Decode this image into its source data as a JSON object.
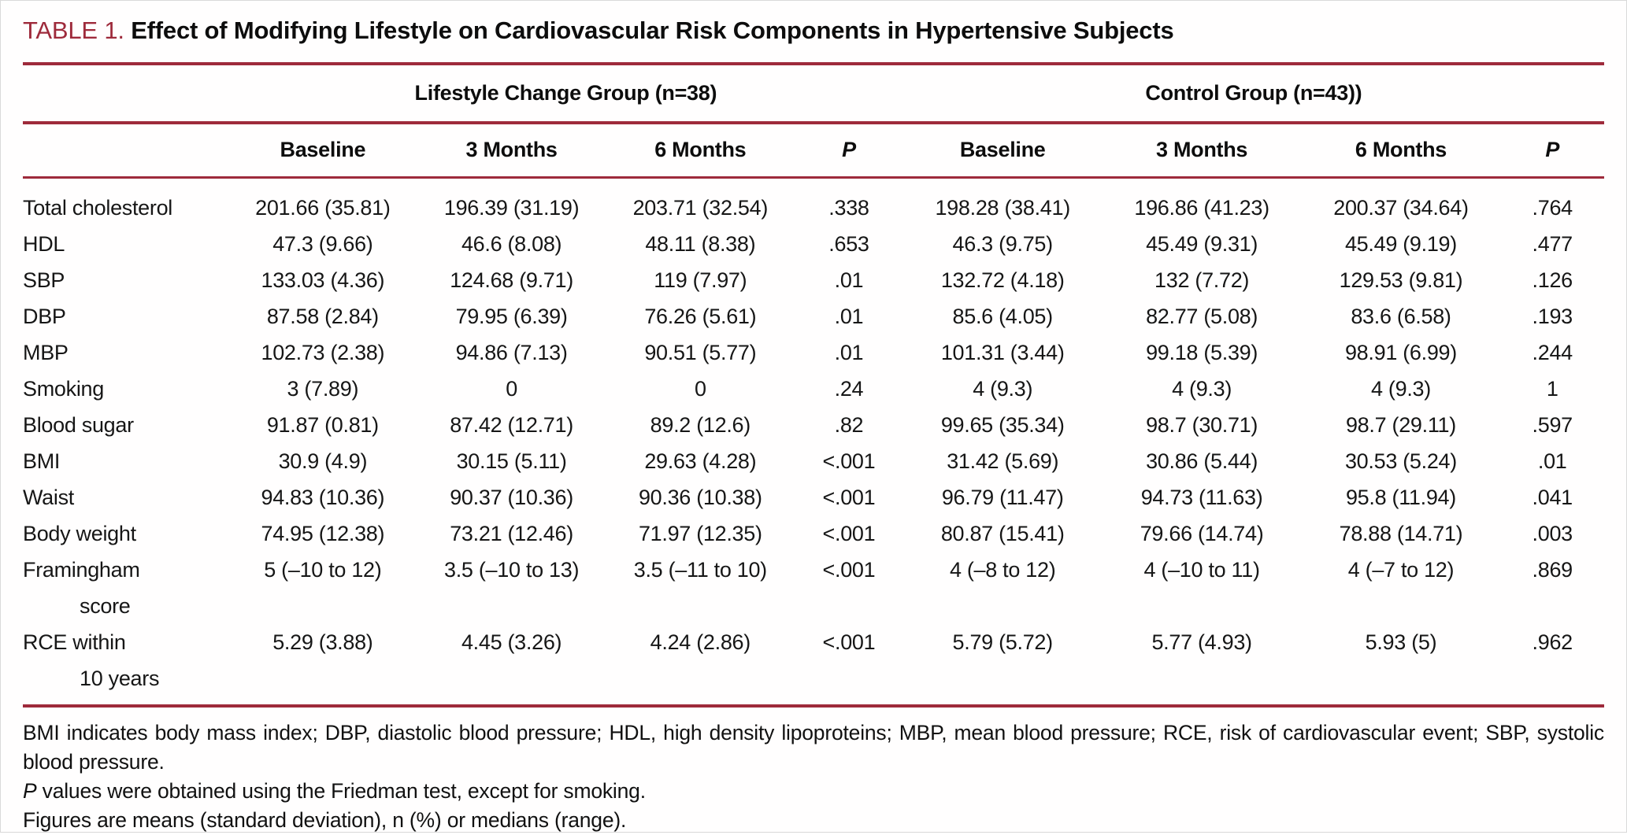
{
  "colors": {
    "accent_red": "#9e2a3b",
    "text_black": "#0d0d0d"
  },
  "title": {
    "label": "TABLE 1.",
    "text": "Effect of Modifying Lifestyle on Cardiovascular Risk Components in Hypertensive Subjects"
  },
  "table": {
    "groups": [
      {
        "label": "Lifestyle Change Group (n=38)"
      },
      {
        "label": "Control Group (n=43))"
      }
    ],
    "columns": [
      "Baseline",
      "3 Months",
      "6 Months",
      "P",
      "Baseline",
      "3 Months",
      "6 Months",
      "P"
    ],
    "rows": [
      {
        "label": "Total cholesterol",
        "values": [
          "201.66 (35.81)",
          "196.39 (31.19)",
          "203.71 (32.54)",
          ".338",
          "198.28 (38.41)",
          "196.86 (41.23)",
          "200.37 (34.64)",
          ".764"
        ]
      },
      {
        "label": "HDL",
        "values": [
          "47.3 (9.66)",
          "46.6 (8.08)",
          "48.11 (8.38)",
          ".653",
          "46.3 (9.75)",
          "45.49 (9.31)",
          "45.49 (9.19)",
          ".477"
        ]
      },
      {
        "label": "SBP",
        "values": [
          "133.03 (4.36)",
          "124.68 (9.71)",
          "119 (7.97)",
          ".01",
          "132.72 (4.18)",
          "132 (7.72)",
          "129.53 (9.81)",
          ".126"
        ]
      },
      {
        "label": "DBP",
        "values": [
          "87.58 (2.84)",
          "79.95 (6.39)",
          "76.26 (5.61)",
          ".01",
          "85.6 (4.05)",
          "82.77 (5.08)",
          "83.6 (6.58)",
          ".193"
        ]
      },
      {
        "label": "MBP",
        "values": [
          "102.73 (2.38)",
          "94.86 (7.13)",
          "90.51 (5.77)",
          ".01",
          "101.31 (3.44)",
          "99.18 (5.39)",
          "98.91 (6.99)",
          ".244"
        ]
      },
      {
        "label": "Smoking",
        "values": [
          "3 (7.89)",
          "0",
          "0",
          ".24",
          "4 (9.3)",
          "4 (9.3)",
          "4 (9.3)",
          "1"
        ]
      },
      {
        "label": "Blood sugar",
        "values": [
          "91.87 (0.81)",
          "87.42 (12.71)",
          "89.2 (12.6)",
          ".82",
          "99.65 (35.34)",
          "98.7 (30.71)",
          "98.7 (29.11)",
          ".597"
        ]
      },
      {
        "label": "BMI",
        "values": [
          "30.9 (4.9)",
          "30.15 (5.11)",
          "29.63 (4.28)",
          "<.001",
          "31.42 (5.69)",
          "30.86 (5.44)",
          "30.53 (5.24)",
          ".01"
        ]
      },
      {
        "label": "Waist",
        "values": [
          "94.83 (10.36)",
          "90.37 (10.36)",
          "90.36 (10.38)",
          "<.001",
          "96.79 (11.47)",
          "94.73 (11.63)",
          "95.8 (11.94)",
          ".041"
        ]
      },
      {
        "label": "Body weight",
        "values": [
          "74.95 (12.38)",
          "73.21 (12.46)",
          "71.97 (12.35)",
          "<.001",
          "80.87 (15.41)",
          "79.66 (14.74)",
          "78.88 (14.71)",
          ".003"
        ]
      },
      {
        "label": "Framingham\nscore",
        "values": [
          "5 (–10 to 12)",
          "3.5 (–10 to 13)",
          "3.5 (–11 to 10)",
          "<.001",
          "4 (–8 to 12)",
          "4 (–10 to 11)",
          "4 (–7 to 12)",
          ".869"
        ]
      },
      {
        "label": "RCE within\n10 years",
        "values": [
          "5.29 (3.88)",
          "4.45 (3.26)",
          "4.24 (2.86)",
          "<.001",
          "5.79 (5.72)",
          "5.77 (4.93)",
          "5.93 (5)",
          ".962"
        ]
      }
    ]
  },
  "footnotes": {
    "abbreviations": "BMI indicates body mass index; DBP, diastolic blood pressure; HDL, high density lipoproteins; MBP, mean blood pressure; RCE, risk of cardiovascular event; SBP, systolic blood pressure.",
    "friedman_p": "P",
    "friedman_rest": " values were obtained using the Friedman test, except for smoking.",
    "figures": "Figures are means (standard deviation), n (%) or medians (range)."
  }
}
